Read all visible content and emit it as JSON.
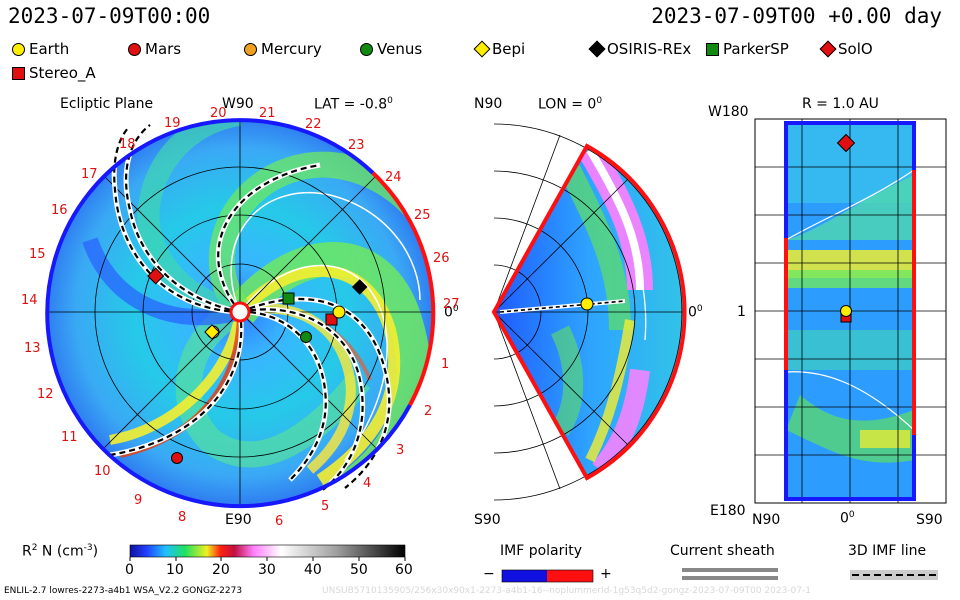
{
  "header": {
    "timestamp_left": "2023-07-09T00:00",
    "timestamp_right": "2023-07-09T00 +0.00 day"
  },
  "legend": [
    {
      "label": "Earth",
      "color": "#ffee00",
      "shape": "circle"
    },
    {
      "label": "Mars",
      "color": "#e01010",
      "shape": "circle"
    },
    {
      "label": "Mercury",
      "color": "#f0a020",
      "shape": "circle"
    },
    {
      "label": "Venus",
      "color": "#108a10",
      "shape": "circle"
    },
    {
      "label": "Bepi",
      "color": "#ffee00",
      "shape": "diamond"
    },
    {
      "label": "OSIRIS-REx",
      "color": "#000000",
      "shape": "diamond"
    },
    {
      "label": "ParkerSP",
      "color": "#108a10",
      "shape": "square"
    },
    {
      "label": "SolO",
      "color": "#e01010",
      "shape": "diamond"
    },
    {
      "label": "Stereo_A",
      "color": "#e01010",
      "shape": "square"
    }
  ],
  "panel_ecliptic": {
    "title": "Ecliptic Plane",
    "top_label": "W90",
    "lat_label": "LAT = -0.8",
    "deg_sup": "0",
    "right_label": "0",
    "bottom_label": "E90",
    "numbers": [
      "1",
      "2",
      "3",
      "4",
      "5",
      "6",
      "8",
      "9",
      "10",
      "11",
      "12",
      "13",
      "14",
      "15",
      "16",
      "17",
      "18",
      "19",
      "20",
      "21",
      "22",
      "23",
      "24",
      "25",
      "26",
      "27"
    ]
  },
  "panel_meridional": {
    "top_label": "N90",
    "lon_label": "LON = 0",
    "deg_sup": "0",
    "right_label": "0",
    "bottom_label": "S90"
  },
  "panel_sphere": {
    "title": "R = 1.0 AU",
    "top_left": "W180",
    "bottom_left": "E180",
    "mid_left": "1",
    "x_left": "N90",
    "x_mid": "0",
    "x_right": "S90",
    "deg_sup": "0"
  },
  "colorbar": {
    "label": "R",
    "sup": "2",
    "label_rest": " N (cm",
    "unit_sup": "-3",
    "close": ")",
    "ticks": [
      "0",
      "10",
      "20",
      "30",
      "40",
      "50",
      "60"
    ]
  },
  "imf": {
    "title": "IMF polarity",
    "minus": "−",
    "plus": "+"
  },
  "sheath": {
    "title": "Current sheath"
  },
  "imf3d": {
    "title": "3D IMF line"
  },
  "footer": {
    "left": "ENLIL-2.7 lowres-2273-a4b1 WSA_V2.2 GONGZ-2273",
    "right": "UNSUB5710135905/256x30x90x1-2273-a4b1-16--noplummerId-1g53q5d2-gongz-2023-07-09T00   2023-07-1"
  },
  "colors": {
    "blue": "#1818ff",
    "red": "#ff1010"
  }
}
